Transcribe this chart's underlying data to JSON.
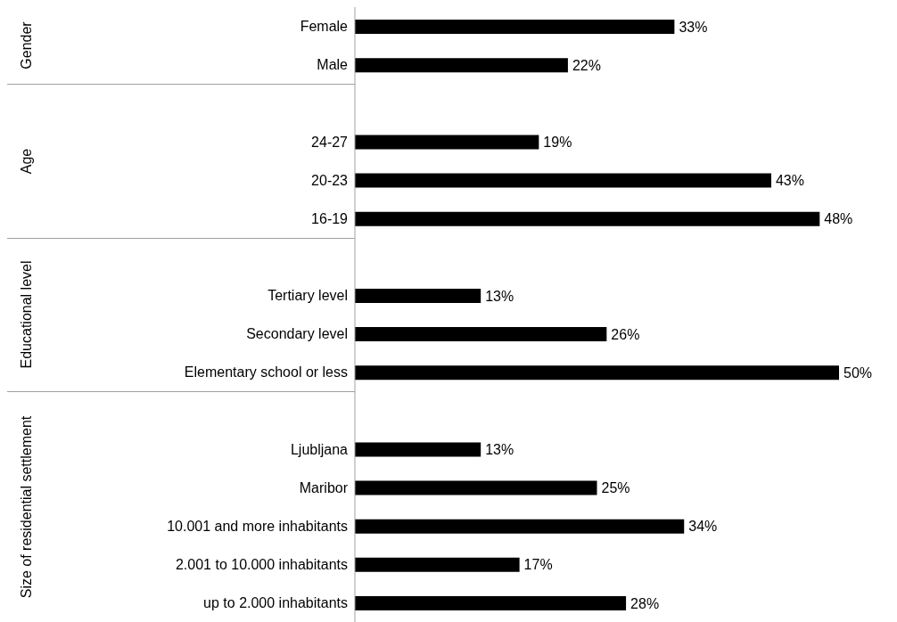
{
  "chart_data": {
    "type": "bar",
    "orientation": "horizontal",
    "color": "#000000",
    "categories": [
      "Female",
      "Male",
      null,
      "24-27",
      "20-23",
      "16-19",
      null,
      "Tertiary level",
      "Secondary level",
      "Elementary school or less",
      null,
      "Ljubljana",
      "Maribor",
      "10.001 and more inhabitants",
      "2.001 to 10.000 inhabitants",
      "up to 2.000 inhabitants"
    ],
    "values": [
      33,
      22,
      null,
      19,
      43,
      48,
      null,
      13,
      26,
      50,
      null,
      13,
      25,
      34,
      17,
      28
    ],
    "value_labels": [
      "33%",
      "22%",
      null,
      "19%",
      "43%",
      "48%",
      null,
      "13%",
      "26%",
      "50%",
      null,
      "13%",
      "25%",
      "34%",
      "17%",
      "28%"
    ],
    "annotations": [
      "Gender",
      "Age",
      "Educational level",
      "Size of residential settlement"
    ],
    "grid": false,
    "legend": false
  }
}
